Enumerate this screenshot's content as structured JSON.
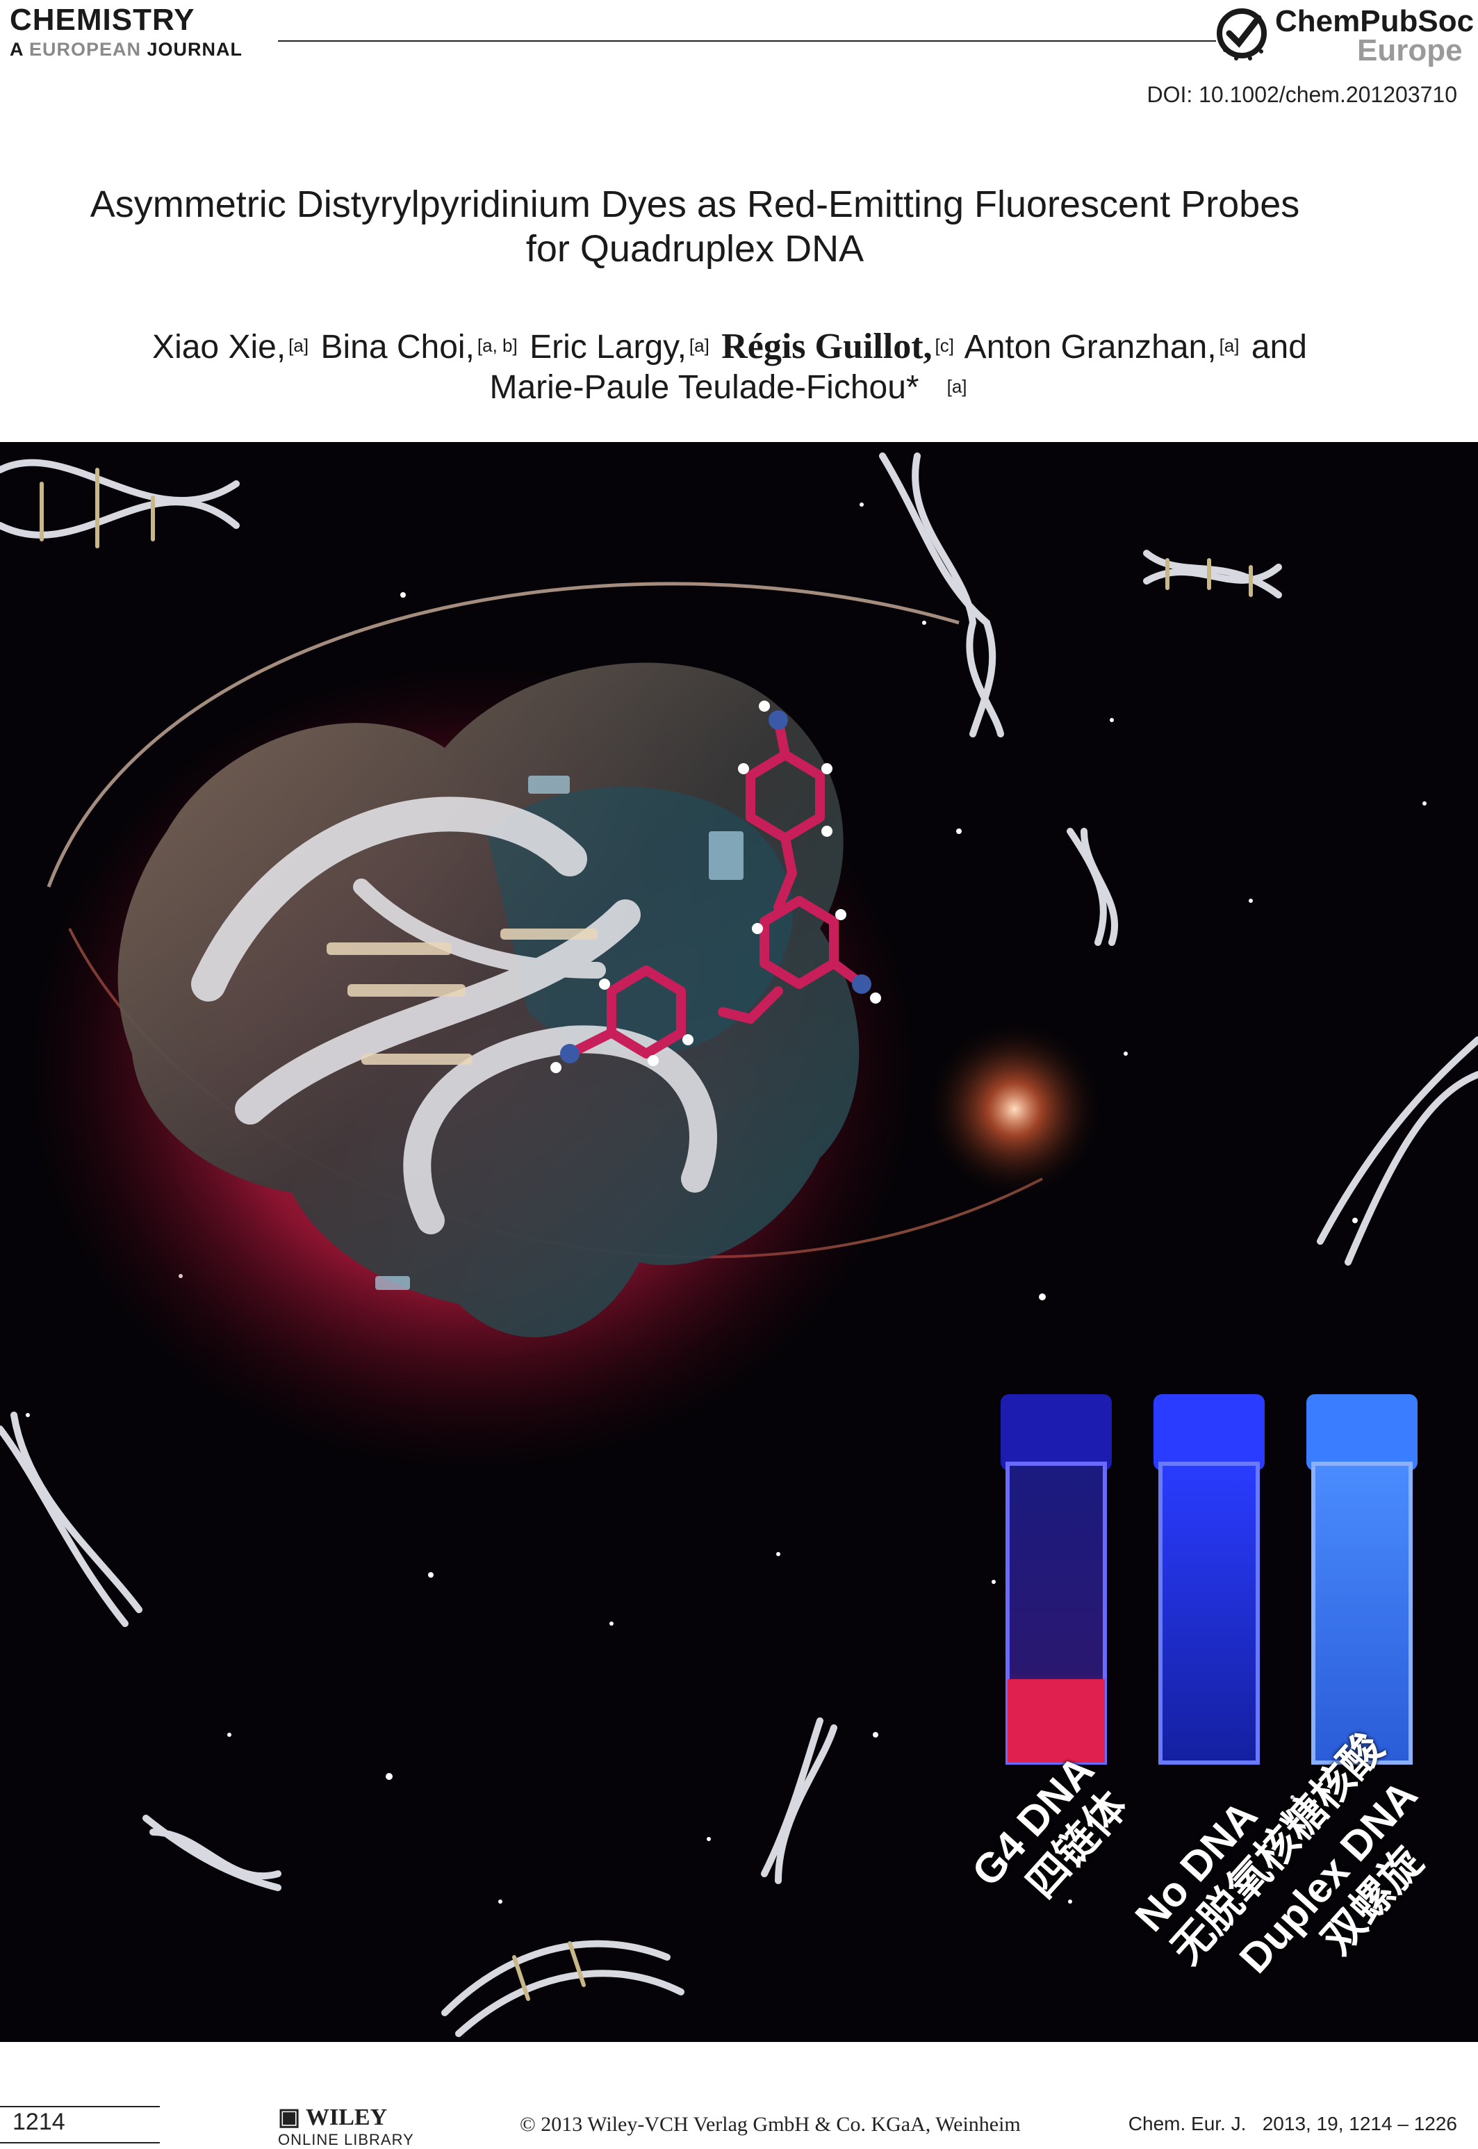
{
  "header": {
    "journal_name": "CHEMISTRY",
    "journal_sub_prefix": "A ",
    "journal_sub_highlight": "EUROPEAN",
    "journal_sub_suffix": " JOURNAL",
    "publisher_name": "ChemPubSoc",
    "publisher_sub": "Europe",
    "doi": "DOI: 10.1002/chem.201203710"
  },
  "article": {
    "title_line1": "Asymmetric Distyrylpyridinium Dyes as Red-Emitting Fluorescent Probes",
    "title_line2": "for Quadruplex DNA",
    "authors": [
      {
        "name": "Xiao Xie,",
        "aff": "[a]"
      },
      {
        "name": "Bina Choi,",
        "aff": "[a, b]"
      },
      {
        "name": "Eric Largy,",
        "aff": "[a]"
      },
      {
        "name": "Régis Guillot,",
        "aff": "[c]"
      },
      {
        "name": "Anton Granzhan,",
        "aff": "[a]"
      },
      {
        "name": "and",
        "aff": ""
      },
      {
        "name": "Marie-Paule Teulade-Fichou*",
        "aff": "[a]"
      }
    ]
  },
  "cover": {
    "cuvettes": [
      {
        "label_en": "G4 DNA",
        "label_cn": "四链体",
        "color": "#e0204f"
      },
      {
        "label_en": "No DNA",
        "label_cn": "无脱氧核糖核酸",
        "color": "#2a3cff"
      },
      {
        "label_en": "Duplex DNA",
        "label_cn": "双螺旋",
        "color": "#3a7dff"
      }
    ],
    "colors": {
      "glow": "#e8244f",
      "dye": "#c81e5a",
      "background": "#050307"
    }
  },
  "footer": {
    "page_number": "1214",
    "wiley_name": "WILEY",
    "wiley_sub": "ONLINE LIBRARY",
    "copyright": "© 2013 Wiley-VCH Verlag GmbH & Co. KGaA, Weinheim",
    "citation": "Chem. Eur. J.   2013, 19, 1214 – 1226"
  }
}
